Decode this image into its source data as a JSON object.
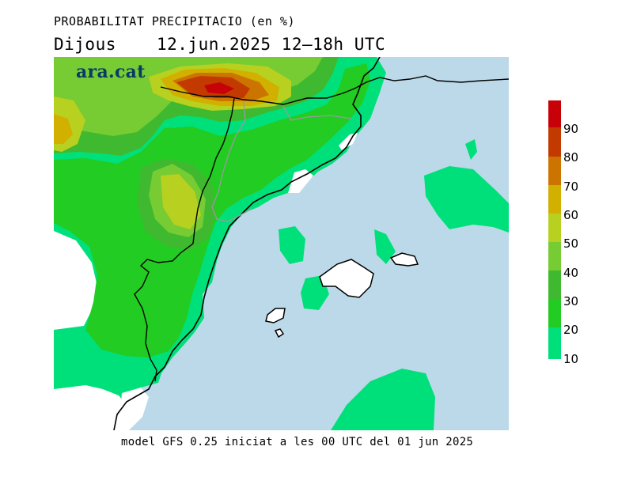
{
  "title": {
    "variable": "PROBABILITAT PRECIPITACIO (en %)",
    "day": "Dijous",
    "date_range": "12.jun.2025 12—18h UTC"
  },
  "brand": "ara.cat",
  "footer": "model GFS 0.25 iniciat a les 00 UTC del 01 jun 2025",
  "legend": {
    "colors": [
      "#00e07a",
      "#22cc22",
      "#3fb92f",
      "#77cc33",
      "#b8d020",
      "#d2b000",
      "#cc7400",
      "#c33a00",
      "#c80008"
    ],
    "labels": [
      "10",
      "20",
      "30",
      "40",
      "50",
      "60",
      "70",
      "80",
      "90"
    ]
  },
  "map_colors": {
    "sea": "#bcd9ea",
    "land_low": "#ffffff"
  }
}
